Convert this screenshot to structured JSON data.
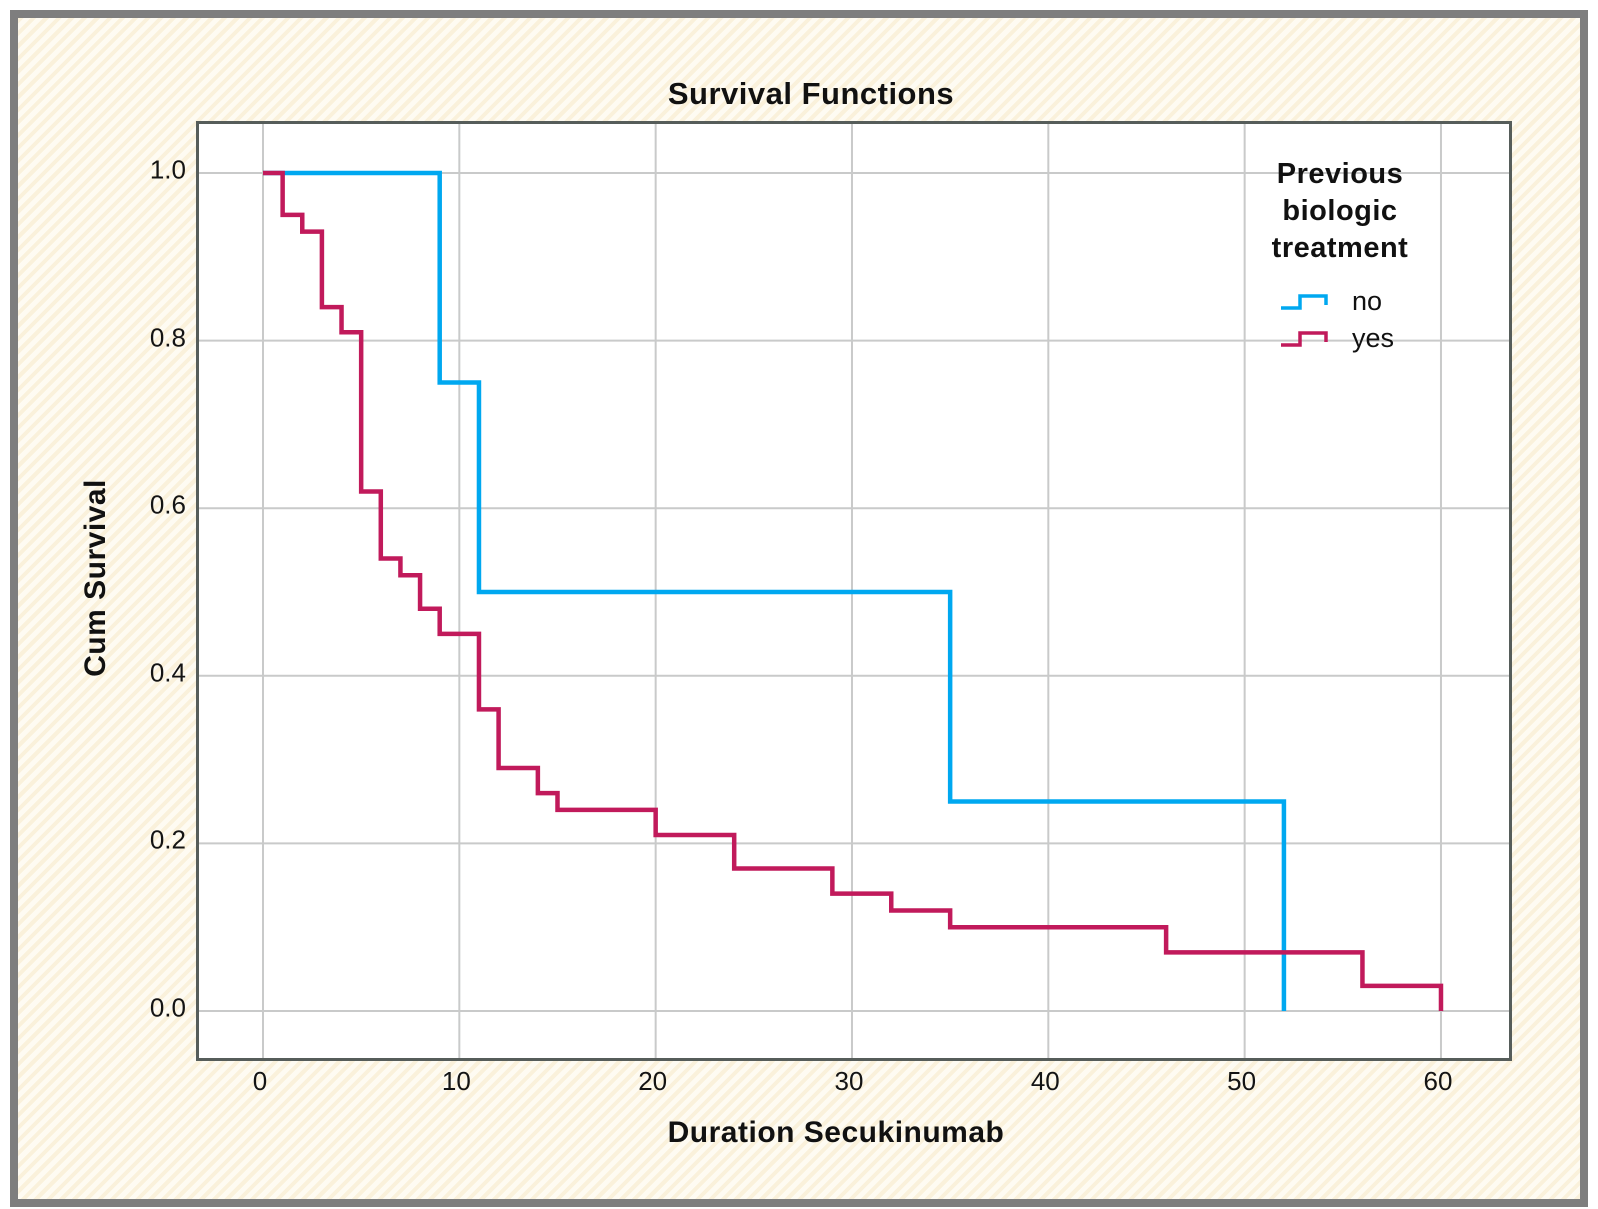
{
  "frame": {
    "border_color": "#7e7e7e",
    "background_stripe_colors": [
      "#faf1db",
      "#fefbf2"
    ]
  },
  "chart_data": {
    "type": "line",
    "subtype": "kaplan-meier-step-survival",
    "title": "Survival Functions",
    "xlabel": "Duration Secukinumab",
    "ylabel": "Cum Survival",
    "xlim": [
      0,
      60
    ],
    "ylim": [
      0.0,
      1.0
    ],
    "x_ticks": [
      "0",
      "10",
      "20",
      "30",
      "40",
      "50",
      "60"
    ],
    "y_ticks": [
      "1.0",
      "0.8",
      "0.6",
      "0.4",
      "0.2",
      "0.0"
    ],
    "grid": true,
    "grid_color": "#c9caca",
    "plot_border_color": "#565d5a",
    "legend": {
      "title": "Previous biologic treatment",
      "position": "upper right",
      "entries": [
        {
          "label": "no",
          "color": "#00a8f0"
        },
        {
          "label": "yes",
          "color": "#c11a5b"
        }
      ]
    },
    "series": [
      {
        "name": "no",
        "color": "#00a8f0",
        "steps": [
          [
            0,
            1.0
          ],
          [
            9,
            0.75
          ],
          [
            11,
            0.5
          ],
          [
            35,
            0.25
          ],
          [
            52,
            0.0
          ]
        ]
      },
      {
        "name": "yes",
        "color": "#c11a5b",
        "steps": [
          [
            0,
            1.0
          ],
          [
            1,
            0.95
          ],
          [
            2,
            0.93
          ],
          [
            3,
            0.84
          ],
          [
            4,
            0.81
          ],
          [
            5,
            0.62
          ],
          [
            6,
            0.54
          ],
          [
            7,
            0.52
          ],
          [
            8,
            0.48
          ],
          [
            9,
            0.45
          ],
          [
            11,
            0.36
          ],
          [
            12,
            0.29
          ],
          [
            14,
            0.26
          ],
          [
            15,
            0.24
          ],
          [
            20,
            0.21
          ],
          [
            24,
            0.17
          ],
          [
            29,
            0.14
          ],
          [
            32,
            0.12
          ],
          [
            35,
            0.1
          ],
          [
            46,
            0.07
          ],
          [
            56,
            0.03
          ],
          [
            60,
            0.0
          ]
        ]
      }
    ]
  }
}
